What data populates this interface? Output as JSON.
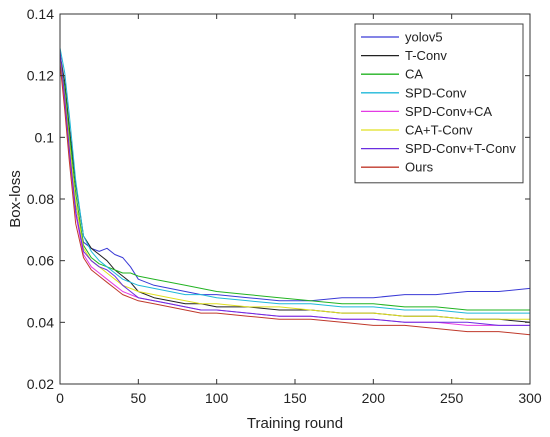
{
  "chart_data": {
    "type": "line",
    "xlabel": "Training round",
    "ylabel": "Box-loss",
    "xlim": [
      0,
      300
    ],
    "ylim": [
      0.02,
      0.14
    ],
    "xticks": [
      0,
      50,
      100,
      150,
      200,
      250,
      300
    ],
    "yticks": [
      0.02,
      0.04,
      0.06,
      0.08,
      0.1,
      0.12,
      0.14
    ],
    "xtick_labels": [
      "0",
      "50",
      "100",
      "150",
      "200",
      "250",
      "300"
    ],
    "ytick_labels": [
      "0.02",
      "0.04",
      "0.06",
      "0.08",
      "0.1",
      "0.12",
      "0.14"
    ],
    "grid": false,
    "legend_position": "top-right",
    "x": [
      0,
      3,
      6,
      10,
      15,
      20,
      25,
      30,
      35,
      40,
      45,
      50,
      60,
      70,
      80,
      90,
      100,
      120,
      140,
      160,
      180,
      200,
      220,
      240,
      260,
      280,
      300
    ],
    "series": [
      {
        "name": "yolov5",
        "color": "#3a3ad6",
        "values": [
          0.128,
          0.112,
          0.098,
          0.078,
          0.066,
          0.064,
          0.063,
          0.064,
          0.062,
          0.061,
          0.058,
          0.054,
          0.052,
          0.051,
          0.05,
          0.049,
          0.049,
          0.048,
          0.047,
          0.047,
          0.048,
          0.048,
          0.049,
          0.049,
          0.05,
          0.05,
          0.051
        ]
      },
      {
        "name": "T-Conv",
        "color": "#222222",
        "values": [
          0.127,
          0.118,
          0.103,
          0.085,
          0.068,
          0.064,
          0.062,
          0.06,
          0.057,
          0.055,
          0.053,
          0.05,
          0.048,
          0.047,
          0.046,
          0.046,
          0.045,
          0.045,
          0.044,
          0.044,
          0.043,
          0.043,
          0.042,
          0.042,
          0.041,
          0.041,
          0.04
        ]
      },
      {
        "name": "CA",
        "color": "#22b322",
        "values": [
          0.126,
          0.116,
          0.101,
          0.082,
          0.065,
          0.061,
          0.059,
          0.058,
          0.057,
          0.056,
          0.056,
          0.055,
          0.054,
          0.053,
          0.052,
          0.051,
          0.05,
          0.049,
          0.048,
          0.047,
          0.046,
          0.046,
          0.045,
          0.045,
          0.044,
          0.044,
          0.044
        ]
      },
      {
        "name": "SPD-Conv",
        "color": "#1fb8d9",
        "values": [
          0.129,
          0.121,
          0.107,
          0.086,
          0.068,
          0.063,
          0.06,
          0.058,
          0.056,
          0.054,
          0.053,
          0.052,
          0.051,
          0.05,
          0.049,
          0.049,
          0.048,
          0.047,
          0.046,
          0.046,
          0.045,
          0.045,
          0.044,
          0.044,
          0.043,
          0.043,
          0.043
        ]
      },
      {
        "name": "SPD-Conv+CA",
        "color": "#e43be4",
        "values": [
          0.125,
          0.111,
          0.094,
          0.075,
          0.062,
          0.058,
          0.056,
          0.054,
          0.052,
          0.05,
          0.049,
          0.048,
          0.047,
          0.046,
          0.045,
          0.044,
          0.044,
          0.043,
          0.042,
          0.042,
          0.041,
          0.041,
          0.04,
          0.04,
          0.039,
          0.039,
          0.039
        ]
      },
      {
        "name": "CA+T-Conv",
        "color": "#e0e020",
        "values": [
          0.126,
          0.114,
          0.098,
          0.079,
          0.064,
          0.06,
          0.058,
          0.056,
          0.054,
          0.052,
          0.051,
          0.05,
          0.049,
          0.048,
          0.047,
          0.046,
          0.046,
          0.045,
          0.045,
          0.044,
          0.043,
          0.043,
          0.042,
          0.042,
          0.041,
          0.041,
          0.041
        ]
      },
      {
        "name": "SPD-Conv+T-Conv",
        "color": "#6a2ee0",
        "values": [
          0.128,
          0.113,
          0.096,
          0.076,
          0.063,
          0.06,
          0.058,
          0.057,
          0.055,
          0.052,
          0.05,
          0.048,
          0.047,
          0.046,
          0.045,
          0.044,
          0.044,
          0.043,
          0.042,
          0.042,
          0.041,
          0.041,
          0.04,
          0.04,
          0.04,
          0.039,
          0.039
        ]
      },
      {
        "name": "Ours",
        "color": "#c0392b",
        "values": [
          0.124,
          0.109,
          0.092,
          0.072,
          0.061,
          0.057,
          0.055,
          0.053,
          0.051,
          0.049,
          0.048,
          0.047,
          0.046,
          0.045,
          0.044,
          0.043,
          0.043,
          0.042,
          0.041,
          0.041,
          0.04,
          0.039,
          0.039,
          0.038,
          0.037,
          0.037,
          0.036
        ]
      }
    ]
  }
}
